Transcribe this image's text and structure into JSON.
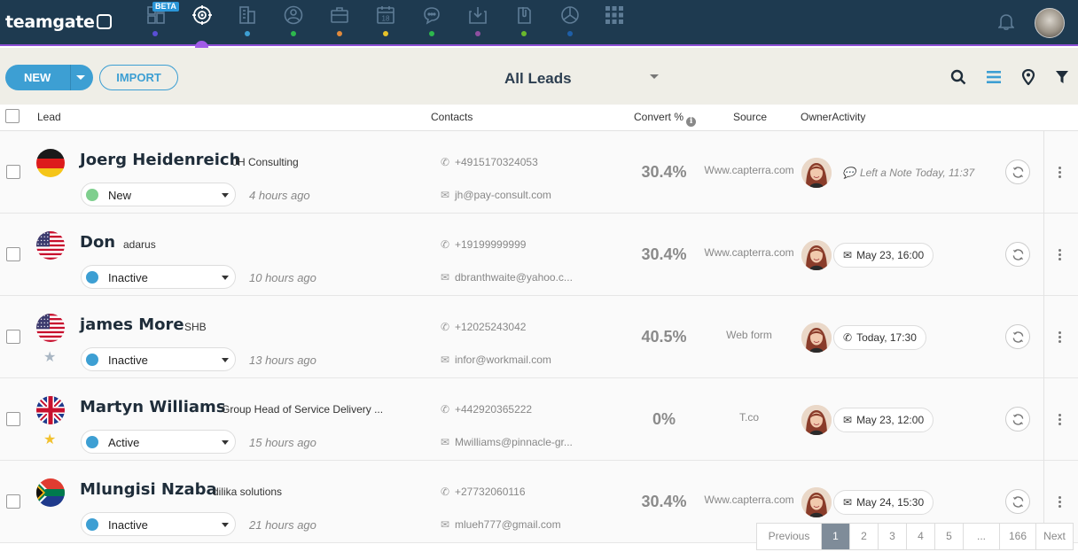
{
  "app": {
    "logo": "teamgate"
  },
  "nav": {
    "beta_label": "BETA",
    "icons": [
      {
        "name": "dashboard-icon",
        "dot": "#5a4fd6"
      },
      {
        "name": "leads-target-icon",
        "dot": "#a15be8"
      },
      {
        "name": "companies-icon",
        "dot": "#3d9fd3"
      },
      {
        "name": "people-icon",
        "dot": "#2db84d"
      },
      {
        "name": "deals-briefcase-icon",
        "dot": "#e08a3c"
      },
      {
        "name": "calendar-icon",
        "dot": "#e6c229",
        "text": "18"
      },
      {
        "name": "chat-icon",
        "dot": "#2db84d"
      },
      {
        "name": "inbox-icon",
        "dot": "#8e4fa0"
      },
      {
        "name": "documents-icon",
        "dot": "#6ab82d"
      },
      {
        "name": "reports-pie-icon",
        "dot": "#1e5fa8"
      },
      {
        "name": "apps-grid-icon",
        "dot": ""
      }
    ]
  },
  "toolbar": {
    "new_label": "NEW",
    "import_label": "IMPORT",
    "view_title": "All Leads"
  },
  "table": {
    "headers": {
      "lead": "Lead",
      "contacts": "Contacts",
      "convert": "Convert %",
      "source": "Source",
      "owner_activity": "OwnerActivity"
    },
    "rows": [
      {
        "flag": "germany",
        "starred": "",
        "name": "Joerg Heidenreich",
        "company": "JH Consulting",
        "status": "New",
        "status_color": "#7fcf8e",
        "ago": "4 hours ago",
        "phone": "+4915170324053",
        "email": "jh@pay-consult.com",
        "convert": "30.4%",
        "source": "Www.capterra.com",
        "activity_type": "note",
        "activity": "Left a Note Today, 11:37"
      },
      {
        "flag": "usa",
        "starred": "",
        "name": "Don",
        "company": "adarus",
        "status": "Inactive",
        "status_color": "#3d9fd3",
        "ago": "10 hours ago",
        "phone": "+19199999999",
        "email": "dbranthwaite@yahoo.c...",
        "convert": "30.4%",
        "source": "Www.capterra.com",
        "activity_type": "email",
        "activity": "May 23, 16:00"
      },
      {
        "flag": "usa",
        "starred": "empty",
        "name": "james More",
        "company": "SHB",
        "status": "Inactive",
        "status_color": "#3d9fd3",
        "ago": "13 hours ago",
        "phone": "+12025243042",
        "email": "infor@workmail.com",
        "convert": "40.5%",
        "source": "Web form",
        "activity_type": "call",
        "activity": "Today, 17:30"
      },
      {
        "flag": "uk",
        "starred": "filled",
        "name": "Martyn Williams",
        "company": "Group Head of Service Delivery ...",
        "status": "Active",
        "status_color": "#3d9fd3",
        "ago": "15 hours ago",
        "phone": "+442920365222",
        "email": "Mwilliams@pinnacle-gr...",
        "convert": "0%",
        "source": "T.co",
        "activity_type": "email",
        "activity": "May 23, 12:00"
      },
      {
        "flag": "southafrica",
        "starred": "",
        "name": "Mlungisi Nzaba",
        "company": "dilika solutions",
        "status": "Inactive",
        "status_color": "#3d9fd3",
        "ago": "21 hours ago",
        "phone": "+27732060116",
        "email": "mlueh777@gmail.com",
        "convert": "30.4%",
        "source": "Www.capterra.com",
        "activity_type": "email",
        "activity": "May 24, 15:30"
      }
    ]
  },
  "pager": {
    "previous": "Previous",
    "pages": [
      "1",
      "2",
      "3",
      "4",
      "5",
      "...",
      "166"
    ],
    "current": "1",
    "next": "Next"
  }
}
